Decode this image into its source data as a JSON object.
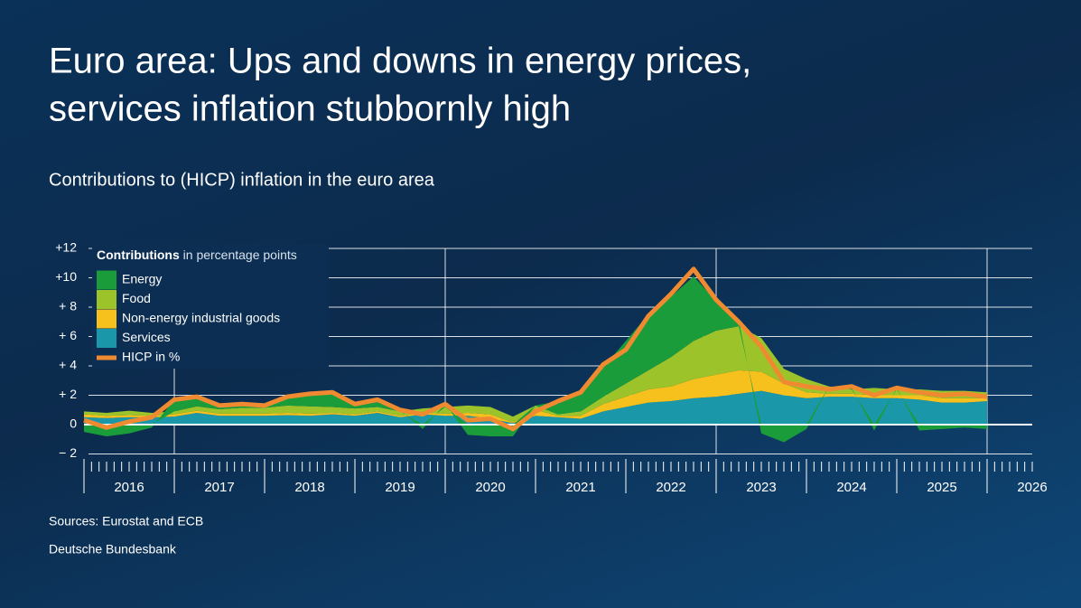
{
  "chart_data": {
    "type": "area",
    "stacked": true,
    "title": [
      "Euro area: Ups and downs in energy prices,",
      "services inflation stubbornly high"
    ],
    "subtitle": "Contributions to (HICP) inflation in the euro area",
    "legend_title": "Contributions",
    "legend_subtitle": "in percentage points",
    "sources": "Sources: Eurostat and ECB",
    "publisher": "Deutsche Bundesbank",
    "xlim": [
      2016,
      2026.5
    ],
    "xticks": [
      2016,
      2017,
      2018,
      2019,
      2020,
      2021,
      2022,
      2023,
      2024,
      2025,
      2026
    ],
    "ylim": [
      -2,
      12
    ],
    "yticks": [
      {
        "value": -2,
        "label": "− 2"
      },
      0,
      {
        "value": 2,
        "label": "+ 2"
      },
      {
        "value": 4,
        "label": "+ 4"
      },
      {
        "value": 6,
        "label": "+ 6"
      },
      {
        "value": 8,
        "label": "+ 8"
      },
      {
        "value": 10,
        "label": "+10"
      },
      {
        "value": 12,
        "label": "+12"
      }
    ],
    "grid": true,
    "x": [
      2016,
      2016.25,
      2016.5,
      2016.75,
      2017,
      2017.25,
      2017.5,
      2017.75,
      2018,
      2018.25,
      2018.5,
      2018.75,
      2019,
      2019.25,
      2019.5,
      2019.75,
      2020,
      2020.25,
      2020.5,
      2020.75,
      2021,
      2021.25,
      2021.5,
      2021.75,
      2022,
      2022.25,
      2022.5,
      2022.75,
      2023,
      2023.25,
      2023.5,
      2023.75,
      2024,
      2024.25,
      2024.5,
      2024.75,
      2025,
      2025.25,
      2025.5,
      2025.75,
      2026
    ],
    "series": [
      {
        "name": "Services",
        "color": "#1b97aa",
        "values": [
          0.5,
          0.45,
          0.5,
          0.5,
          0.55,
          0.8,
          0.6,
          0.6,
          0.6,
          0.65,
          0.6,
          0.7,
          0.6,
          0.8,
          0.5,
          0.7,
          0.6,
          0.6,
          0.4,
          0.1,
          0.6,
          0.5,
          0.4,
          0.9,
          1.2,
          1.5,
          1.6,
          1.8,
          1.9,
          2.1,
          2.3,
          2.0,
          1.8,
          1.9,
          1.9,
          1.8,
          1.8,
          1.7,
          1.5,
          1.5,
          1.6
        ]
      },
      {
        "name": "Non-energy industrial goods",
        "color": "#f7c11d",
        "values": [
          0.2,
          0.15,
          0.15,
          0.1,
          0.15,
          0.15,
          0.15,
          0.15,
          0.15,
          0.15,
          0.15,
          0.1,
          0.1,
          0.1,
          0.1,
          0.1,
          0.15,
          0.2,
          0.3,
          0.05,
          0.4,
          0.1,
          0.2,
          0.5,
          0.7,
          0.9,
          1.0,
          1.3,
          1.5,
          1.6,
          1.3,
          0.8,
          0.4,
          0.2,
          0.2,
          0.2,
          0.2,
          0.3,
          0.3,
          0.3,
          0.2
        ]
      },
      {
        "name": "Food",
        "color": "#9dc32b",
        "values": [
          0.2,
          0.2,
          0.3,
          0.2,
          0.2,
          0.3,
          0.3,
          0.4,
          0.4,
          0.5,
          0.5,
          0.4,
          0.4,
          0.3,
          0.3,
          0.3,
          0.45,
          0.5,
          0.5,
          0.4,
          0.3,
          0.1,
          0.3,
          0.5,
          0.9,
          1.3,
          2.0,
          2.6,
          3.0,
          3.0,
          2.3,
          1.0,
          0.9,
          0.5,
          0.3,
          0.5,
          0.4,
          0.4,
          0.5,
          0.5,
          0.4
        ]
      },
      {
        "name": "Energy",
        "color": "#1a9c3b",
        "values": [
          -0.5,
          -0.8,
          -0.6,
          -0.2,
          0.8,
          0.7,
          0.2,
          0.3,
          0.2,
          0.6,
          0.9,
          0.9,
          0.3,
          0.4,
          0.1,
          -0.3,
          0.2,
          -0.7,
          -0.8,
          -0.8,
          0.0,
          0.9,
          1.3,
          2.0,
          2.9,
          3.8,
          4.1,
          4.4,
          2.0,
          0.4,
          -0.6,
          -1.2,
          -0.3,
          0.0,
          0.1,
          -0.4,
          0.1,
          -0.4,
          -0.3,
          -0.2,
          -0.3
        ]
      },
      {
        "name": "HICP in %",
        "type": "line",
        "color": "#f08a30",
        "values": [
          0.3,
          -0.2,
          0.2,
          0.5,
          1.7,
          1.9,
          1.3,
          1.4,
          1.3,
          1.9,
          2.1,
          2.2,
          1.4,
          1.7,
          1.0,
          0.7,
          1.4,
          0.3,
          0.4,
          -0.3,
          0.9,
          1.6,
          2.2,
          4.1,
          5.1,
          7.4,
          8.9,
          10.6,
          8.5,
          7.0,
          5.3,
          2.9,
          2.6,
          2.4,
          2.6,
          2.0,
          2.5,
          2.2,
          2.0,
          2.1,
          1.9
        ]
      }
    ]
  }
}
